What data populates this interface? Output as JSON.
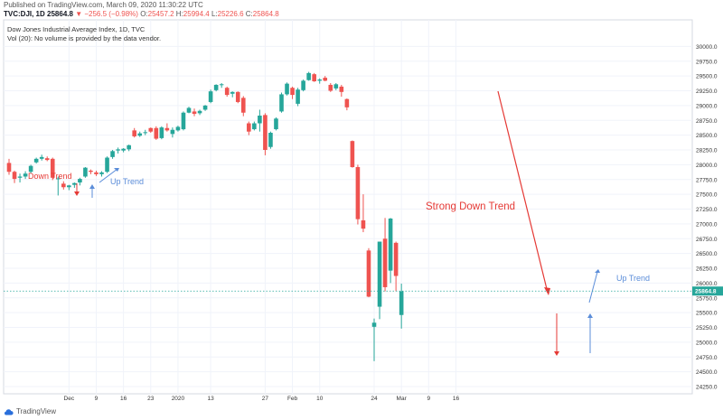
{
  "header": {
    "published": "Published on TradingView.com, March 09, 2020 11:30:22 UTC",
    "symbol": "TVC:DJI, 1D",
    "last": "25864.8",
    "change": "−256.5 (−0.98%)",
    "o_label": "O:",
    "o_value": "25457.2",
    "h_label": "H:",
    "h_value": "25994.4",
    "l_label": "L:",
    "l_value": "25226.6",
    "c_label": "C:",
    "c_value": "25864.8"
  },
  "legend": {
    "title": "Dow Jones Industrial Average Index, 1D, TVC",
    "volume_note": "Vol (20): No volume is provided by the data vendor."
  },
  "brand": {
    "name": "TradingView"
  },
  "colors": {
    "up": "#26a69a",
    "down": "#ef5350",
    "annotation_down": "#e53935",
    "annotation_up": "#5b8dd9",
    "price_line": "#26a69a",
    "grid": "#f0f3fa"
  },
  "chart_data": {
    "type": "candlestick",
    "ylim": [
      24250,
      30250
    ],
    "y_ticks": [
      24250,
      24500,
      24750,
      25000,
      25250,
      25500,
      25750,
      26000,
      26250,
      26500,
      26750,
      27000,
      27250,
      27500,
      27750,
      28000,
      28250,
      28500,
      28750,
      29000,
      29250,
      29500,
      29750,
      30000
    ],
    "x_ticks": [
      {
        "label": "Dec",
        "i": 11
      },
      {
        "label": "9",
        "i": 16
      },
      {
        "label": "16",
        "i": 21
      },
      {
        "label": "23",
        "i": 26
      },
      {
        "label": "2020",
        "i": 31
      },
      {
        "label": "13",
        "i": 37
      },
      {
        "label": "27",
        "i": 47
      },
      {
        "label": "Feb",
        "i": 52
      },
      {
        "label": "10",
        "i": 57
      },
      {
        "label": "24",
        "i": 67
      },
      {
        "label": "Mar",
        "i": 72
      },
      {
        "label": "9",
        "i": 77
      },
      {
        "label": "16",
        "i": 82
      }
    ],
    "current_price": 25864.8,
    "current_price_label": "25864.8",
    "candles": [
      {
        "o": 28030,
        "h": 28100,
        "l": 27830,
        "c": 27880
      },
      {
        "o": 27880,
        "h": 27900,
        "l": 27690,
        "c": 27760
      },
      {
        "o": 27780,
        "h": 27850,
        "l": 27700,
        "c": 27800
      },
      {
        "o": 27800,
        "h": 27890,
        "l": 27760,
        "c": 27850
      },
      {
        "o": 27880,
        "h": 28000,
        "l": 27860,
        "c": 27980
      },
      {
        "o": 28040,
        "h": 28120,
        "l": 28020,
        "c": 28100
      },
      {
        "o": 28100,
        "h": 28170,
        "l": 28070,
        "c": 28130
      },
      {
        "o": 28110,
        "h": 28140,
        "l": 28060,
        "c": 28080
      },
      {
        "o": 28100,
        "h": 28120,
        "l": 27740,
        "c": 27780
      },
      {
        "o": 27770,
        "h": 27800,
        "l": 27480,
        "c": 27770
      },
      {
        "o": 27680,
        "h": 27720,
        "l": 27580,
        "c": 27620
      },
      {
        "o": 27620,
        "h": 27660,
        "l": 27570,
        "c": 27650
      },
      {
        "o": 27660,
        "h": 27700,
        "l": 27610,
        "c": 27690
      },
      {
        "o": 27700,
        "h": 27780,
        "l": 27650,
        "c": 27760
      },
      {
        "o": 27800,
        "h": 27960,
        "l": 27780,
        "c": 27950
      },
      {
        "o": 27900,
        "h": 27920,
        "l": 27840,
        "c": 27880
      },
      {
        "o": 27870,
        "h": 27900,
        "l": 27810,
        "c": 27840
      },
      {
        "o": 27840,
        "h": 27890,
        "l": 27800,
        "c": 27870
      },
      {
        "o": 27880,
        "h": 28140,
        "l": 27860,
        "c": 28120
      },
      {
        "o": 28130,
        "h": 28250,
        "l": 28100,
        "c": 28230
      },
      {
        "o": 28240,
        "h": 28290,
        "l": 28190,
        "c": 28260
      },
      {
        "o": 28240,
        "h": 28280,
        "l": 28210,
        "c": 28270
      },
      {
        "o": 28260,
        "h": 28340,
        "l": 28230,
        "c": 28330
      },
      {
        "o": 28580,
        "h": 28620,
        "l": 28460,
        "c": 28480
      },
      {
        "o": 28490,
        "h": 28560,
        "l": 28470,
        "c": 28530
      },
      {
        "o": 28540,
        "h": 28590,
        "l": 28500,
        "c": 28550
      },
      {
        "o": 28620,
        "h": 28630,
        "l": 28540,
        "c": 28560
      },
      {
        "o": 28620,
        "h": 28650,
        "l": 28420,
        "c": 28440
      },
      {
        "o": 28450,
        "h": 28650,
        "l": 28430,
        "c": 28630
      },
      {
        "o": 28620,
        "h": 28700,
        "l": 28560,
        "c": 28580
      },
      {
        "o": 28520,
        "h": 28630,
        "l": 28460,
        "c": 28590
      },
      {
        "o": 28580,
        "h": 28660,
        "l": 28560,
        "c": 28640
      },
      {
        "o": 28600,
        "h": 28900,
        "l": 28580,
        "c": 28880
      },
      {
        "o": 28880,
        "h": 28980,
        "l": 28870,
        "c": 28960
      },
      {
        "o": 28900,
        "h": 28950,
        "l": 28820,
        "c": 28860
      },
      {
        "o": 28870,
        "h": 28930,
        "l": 28840,
        "c": 28910
      },
      {
        "o": 28930,
        "h": 29010,
        "l": 28910,
        "c": 29000
      },
      {
        "o": 29060,
        "h": 29270,
        "l": 29040,
        "c": 29240
      },
      {
        "o": 29260,
        "h": 29360,
        "l": 29240,
        "c": 29350
      },
      {
        "o": 29350,
        "h": 29380,
        "l": 29300,
        "c": 29360
      },
      {
        "o": 29300,
        "h": 29320,
        "l": 29150,
        "c": 29180
      },
      {
        "o": 29200,
        "h": 29240,
        "l": 29140,
        "c": 29230
      },
      {
        "o": 29230,
        "h": 29240,
        "l": 29040,
        "c": 29060
      },
      {
        "o": 29130,
        "h": 29160,
        "l": 28820,
        "c": 28880
      },
      {
        "o": 28700,
        "h": 28730,
        "l": 28500,
        "c": 28560
      },
      {
        "o": 28600,
        "h": 28730,
        "l": 28580,
        "c": 28700
      },
      {
        "o": 28700,
        "h": 28930,
        "l": 28560,
        "c": 28830
      },
      {
        "o": 28840,
        "h": 28870,
        "l": 28160,
        "c": 28250
      },
      {
        "o": 28300,
        "h": 28560,
        "l": 28270,
        "c": 28540
      },
      {
        "o": 28600,
        "h": 28800,
        "l": 28580,
        "c": 28780
      },
      {
        "o": 28900,
        "h": 29220,
        "l": 28880,
        "c": 29190
      },
      {
        "o": 29190,
        "h": 29390,
        "l": 29170,
        "c": 29370
      },
      {
        "o": 29300,
        "h": 29320,
        "l": 29110,
        "c": 29180
      },
      {
        "o": 29030,
        "h": 29300,
        "l": 28990,
        "c": 29270
      },
      {
        "o": 29260,
        "h": 29440,
        "l": 29240,
        "c": 29420
      },
      {
        "o": 29430,
        "h": 29570,
        "l": 29420,
        "c": 29550
      },
      {
        "o": 29530,
        "h": 29550,
        "l": 29400,
        "c": 29410
      },
      {
        "o": 29420,
        "h": 29460,
        "l": 29370,
        "c": 29440
      },
      {
        "o": 29470,
        "h": 29500,
        "l": 29410,
        "c": 29420
      },
      {
        "o": 29350,
        "h": 29380,
        "l": 29230,
        "c": 29250
      },
      {
        "o": 29290,
        "h": 29380,
        "l": 29260,
        "c": 29360
      },
      {
        "o": 29320,
        "h": 29350,
        "l": 29150,
        "c": 29230
      },
      {
        "o": 29110,
        "h": 29120,
        "l": 28920,
        "c": 28970
      },
      {
        "o": 28400,
        "h": 28410,
        "l": 27950,
        "c": 27960
      },
      {
        "o": 27960,
        "h": 28000,
        "l": 26990,
        "c": 27080
      },
      {
        "o": 27060,
        "h": 27500,
        "l": 26860,
        "c": 26920
      },
      {
        "o": 26550,
        "h": 26590,
        "l": 25760,
        "c": 25770
      },
      {
        "o": 25260,
        "h": 25400,
        "l": 24680,
        "c": 25330
      },
      {
        "o": 25600,
        "h": 26700,
        "l": 25390,
        "c": 26700
      },
      {
        "o": 26750,
        "h": 27100,
        "l": 25860,
        "c": 25930
      },
      {
        "o": 26210,
        "h": 27100,
        "l": 26000,
        "c": 27090
      },
      {
        "o": 26680,
        "h": 26700,
        "l": 25860,
        "c": 26120
      },
      {
        "o": 25460,
        "h": 25990,
        "l": 25230,
        "c": 25860
      }
    ],
    "annotations": [
      {
        "text": "Down Trend",
        "color": "down"
      },
      {
        "text": "Up Trend",
        "color": "up"
      },
      {
        "text": "Strong Down Trend",
        "color": "down"
      },
      {
        "text": "Up Trend",
        "color": "up"
      }
    ]
  }
}
